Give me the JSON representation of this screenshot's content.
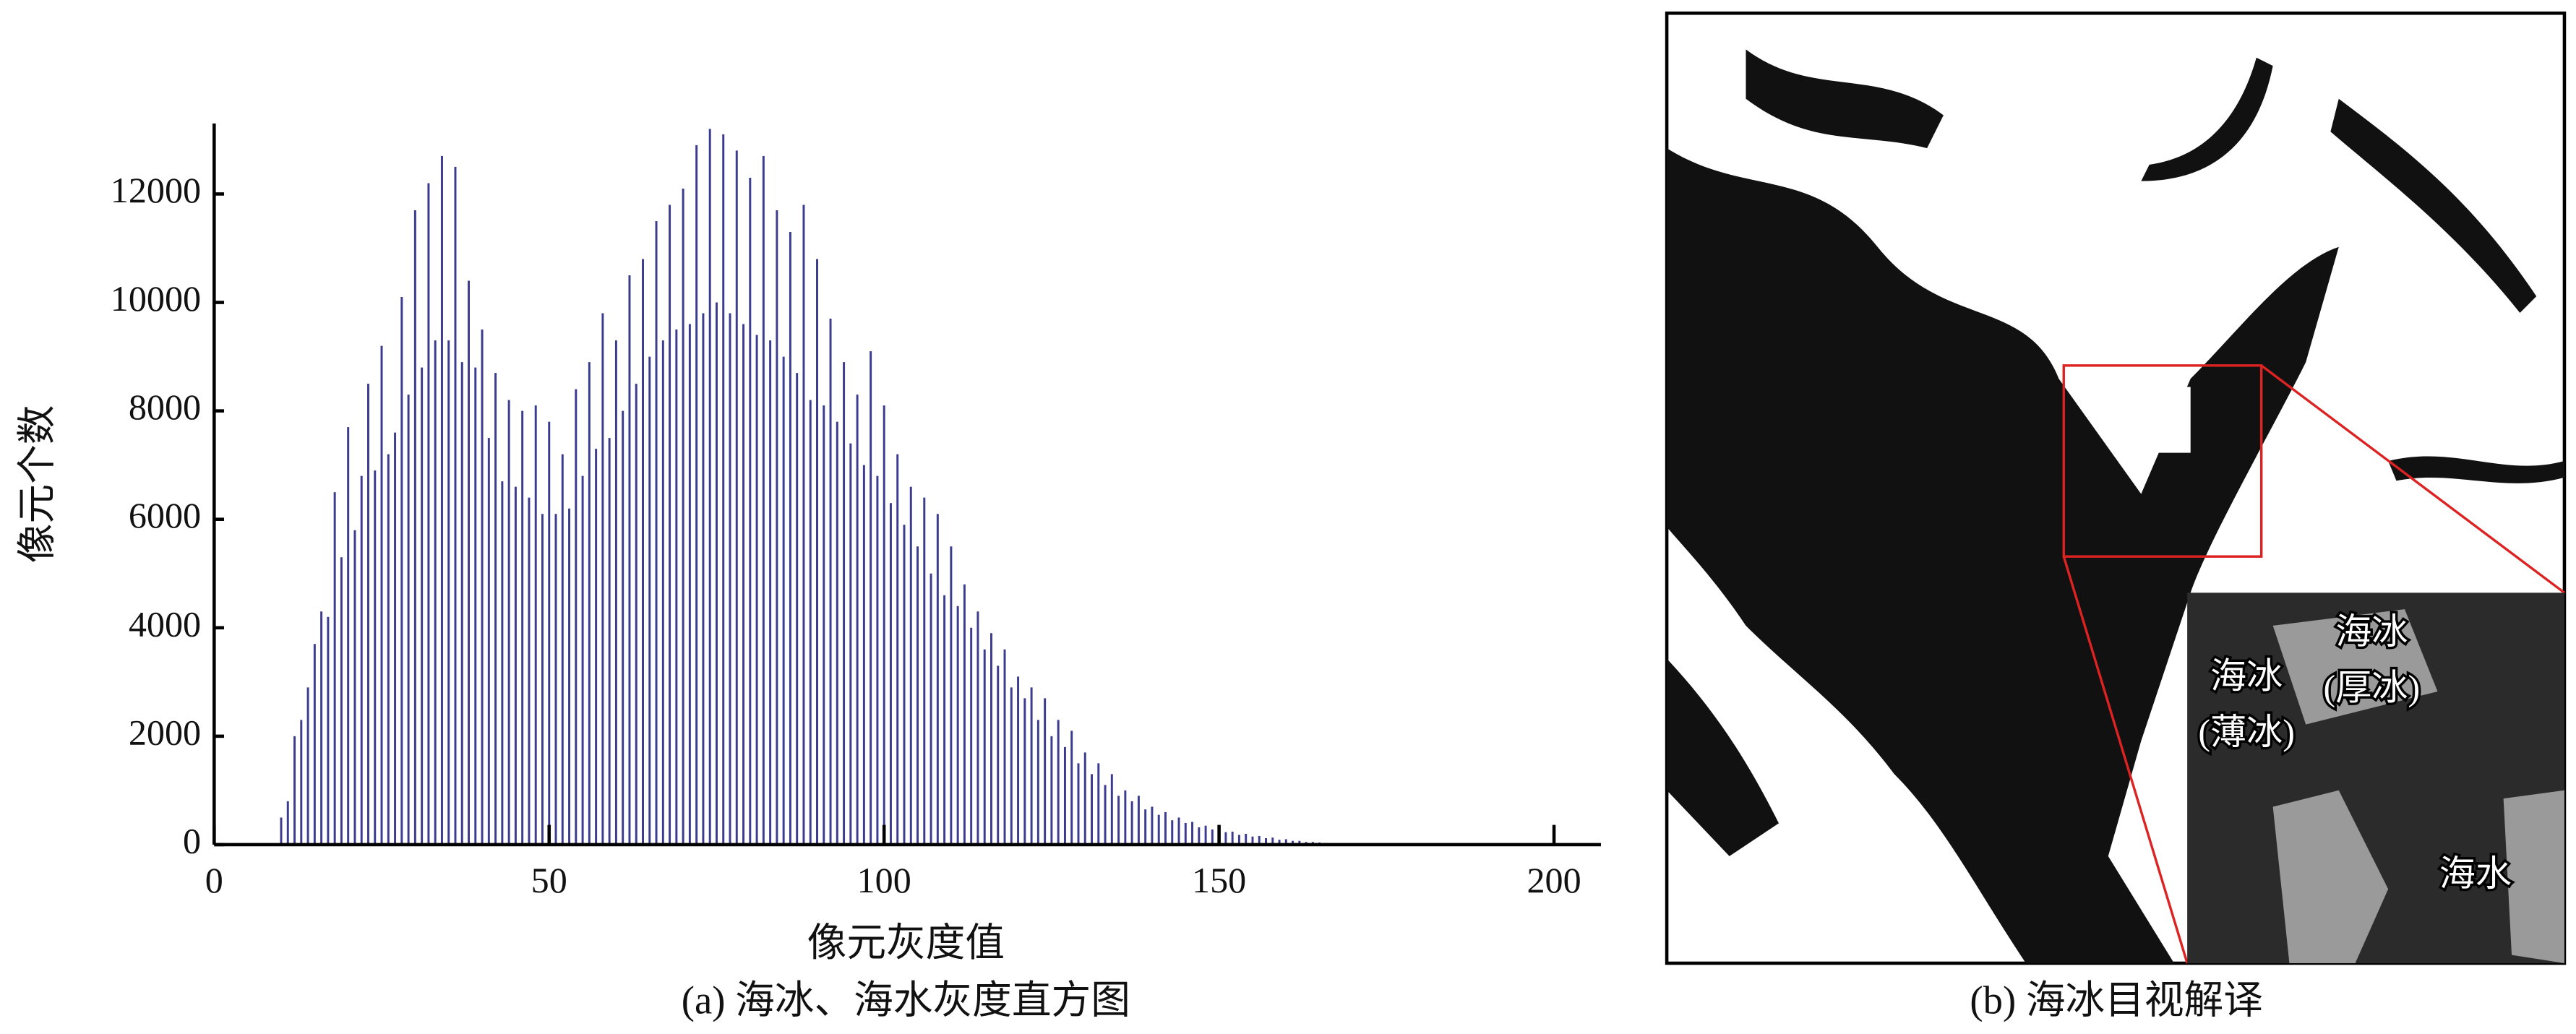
{
  "chart_data": {
    "type": "bar",
    "x_label": "像元灰度值",
    "y_label": "像元个数",
    "caption": "(a) 海冰、海水灰度直方图",
    "color": "#3b3b8f",
    "x": [
      10,
      11,
      12,
      13,
      14,
      15,
      16,
      17,
      18,
      19,
      20,
      21,
      22,
      23,
      24,
      25,
      26,
      27,
      28,
      29,
      30,
      31,
      32,
      33,
      34,
      35,
      36,
      37,
      38,
      39,
      40,
      41,
      42,
      43,
      44,
      45,
      46,
      47,
      48,
      49,
      50,
      51,
      52,
      53,
      54,
      55,
      56,
      57,
      58,
      59,
      60,
      61,
      62,
      63,
      64,
      65,
      66,
      67,
      68,
      69,
      70,
      71,
      72,
      73,
      74,
      75,
      76,
      77,
      78,
      79,
      80,
      81,
      82,
      83,
      84,
      85,
      86,
      87,
      88,
      89,
      90,
      91,
      92,
      93,
      94,
      95,
      96,
      97,
      98,
      99,
      100,
      101,
      102,
      103,
      104,
      105,
      106,
      107,
      108,
      109,
      110,
      111,
      112,
      113,
      114,
      115,
      116,
      117,
      118,
      119,
      120,
      121,
      122,
      123,
      124,
      125,
      126,
      127,
      128,
      129,
      130,
      131,
      132,
      133,
      134,
      135,
      136,
      137,
      138,
      139,
      140,
      141,
      142,
      143,
      144,
      145,
      146,
      147,
      148,
      149,
      150,
      151,
      152,
      153,
      154,
      155,
      156,
      157,
      158,
      159,
      160,
      161,
      162,
      163,
      164,
      165,
      166,
      167,
      168
    ],
    "values": [
      500,
      800,
      2000,
      2300,
      2900,
      3700,
      4300,
      4200,
      6500,
      5300,
      7700,
      5800,
      6800,
      8500,
      6900,
      9200,
      7200,
      7600,
      10100,
      8300,
      11700,
      8800,
      12200,
      9300,
      12700,
      9300,
      12500,
      8900,
      10400,
      8800,
      9500,
      7500,
      8700,
      6700,
      8200,
      6600,
      8000,
      6400,
      8100,
      6100,
      7800,
      6100,
      7200,
      6200,
      8400,
      6800,
      8900,
      7300,
      9800,
      7500,
      9300,
      8000,
      10500,
      8500,
      10800,
      9000,
      11500,
      9300,
      11800,
      9500,
      12100,
      9600,
      12900,
      9800,
      13200,
      10000,
      13100,
      9800,
      12800,
      9600,
      12300,
      9400,
      12700,
      9300,
      11700,
      9000,
      11300,
      8700,
      11800,
      8200,
      10800,
      8100,
      9700,
      7800,
      8900,
      7400,
      8300,
      7000,
      9100,
      6800,
      8100,
      6300,
      7200,
      5900,
      6600,
      5500,
      6400,
      5000,
      6100,
      4600,
      5500,
      4400,
      4800,
      4000,
      4300,
      3600,
      3900,
      3300,
      3600,
      2900,
      3100,
      2700,
      2900,
      2300,
      2700,
      2000,
      2300,
      1800,
      2100,
      1500,
      1700,
      1300,
      1500,
      1100,
      1300,
      900,
      1000,
      800,
      900,
      650,
      700,
      550,
      600,
      450,
      500,
      400,
      420,
      320,
      350,
      280,
      300,
      230,
      240,
      180,
      200,
      150,
      160,
      120,
      130,
      90,
      100,
      70,
      70,
      50,
      50,
      40,
      30,
      20,
      15
    ],
    "xlim": [
      0,
      207
    ],
    "xticks": [
      0,
      50,
      100,
      150,
      200
    ],
    "ylim": [
      0,
      13300
    ],
    "yticks": [
      0,
      2000,
      4000,
      6000,
      8000,
      10000,
      12000
    ]
  },
  "figure_b": {
    "caption": "(b) 海冰目视解译",
    "labels": [
      [
        "海冰",
        "(厚冰)"
      ],
      [
        "海冰",
        "(薄冰)"
      ],
      [
        "海水"
      ]
    ]
  }
}
